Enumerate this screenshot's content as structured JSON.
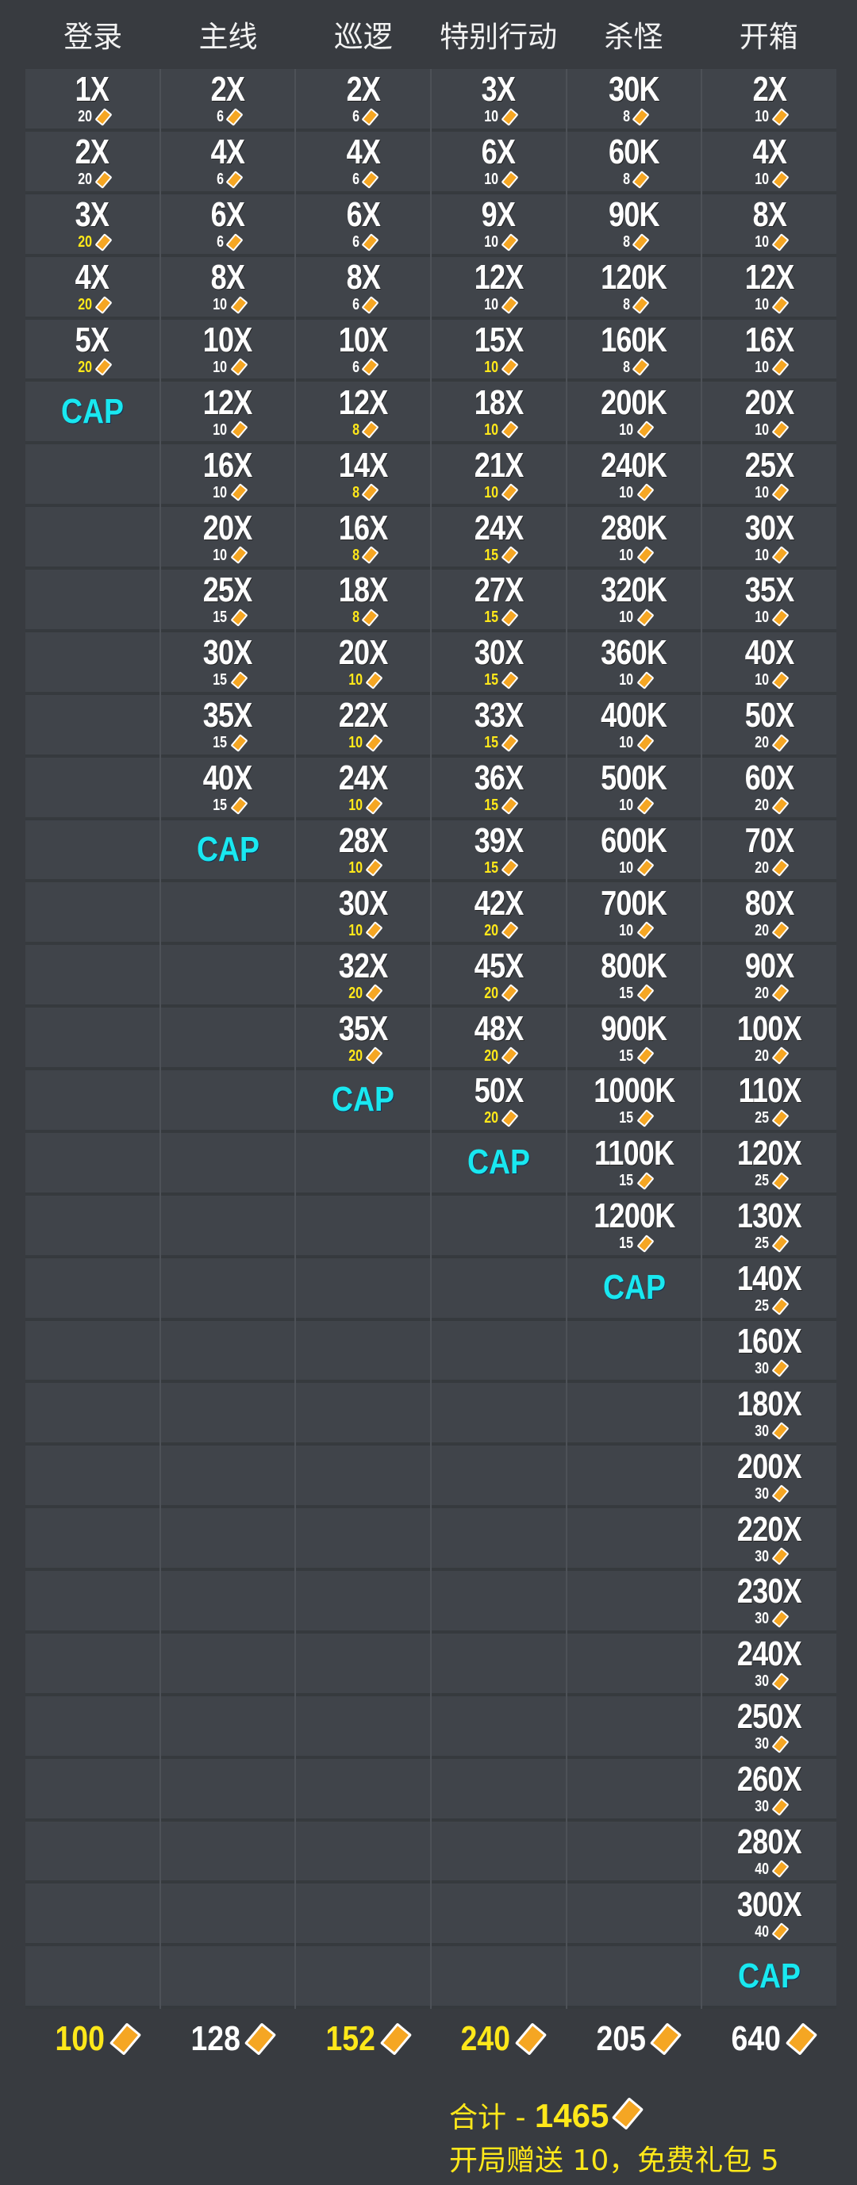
{
  "colors": {
    "yellow": "#ffe81a",
    "cyan": "#19e8f0",
    "ticket": "#f5a623",
    "background": "#383b40"
  },
  "cap_label": "CAP",
  "columns": [
    {
      "header": "登录",
      "total": "100",
      "total_yellow": true,
      "entries": [
        {
          "v": "1X",
          "n": "20",
          "y": false
        },
        {
          "v": "2X",
          "n": "20",
          "y": false
        },
        {
          "v": "3X",
          "n": "20",
          "y": true
        },
        {
          "v": "4X",
          "n": "20",
          "y": true
        },
        {
          "v": "5X",
          "n": "20",
          "y": true
        }
      ]
    },
    {
      "header": "主线",
      "total": "128",
      "total_yellow": false,
      "entries": [
        {
          "v": "2X",
          "n": "6",
          "y": false
        },
        {
          "v": "4X",
          "n": "6",
          "y": false
        },
        {
          "v": "6X",
          "n": "6",
          "y": false
        },
        {
          "v": "8X",
          "n": "10",
          "y": false
        },
        {
          "v": "10X",
          "n": "10",
          "y": false
        },
        {
          "v": "12X",
          "n": "10",
          "y": false
        },
        {
          "v": "16X",
          "n": "10",
          "y": false
        },
        {
          "v": "20X",
          "n": "10",
          "y": false
        },
        {
          "v": "25X",
          "n": "15",
          "y": false
        },
        {
          "v": "30X",
          "n": "15",
          "y": false
        },
        {
          "v": "35X",
          "n": "15",
          "y": false
        },
        {
          "v": "40X",
          "n": "15",
          "y": false
        }
      ]
    },
    {
      "header": "巡逻",
      "total": "152",
      "total_yellow": true,
      "entries": [
        {
          "v": "2X",
          "n": "6",
          "y": false
        },
        {
          "v": "4X",
          "n": "6",
          "y": false
        },
        {
          "v": "6X",
          "n": "6",
          "y": false
        },
        {
          "v": "8X",
          "n": "6",
          "y": false
        },
        {
          "v": "10X",
          "n": "6",
          "y": false
        },
        {
          "v": "12X",
          "n": "8",
          "y": true
        },
        {
          "v": "14X",
          "n": "8",
          "y": true
        },
        {
          "v": "16X",
          "n": "8",
          "y": true
        },
        {
          "v": "18X",
          "n": "8",
          "y": true
        },
        {
          "v": "20X",
          "n": "10",
          "y": true
        },
        {
          "v": "22X",
          "n": "10",
          "y": true
        },
        {
          "v": "24X",
          "n": "10",
          "y": true
        },
        {
          "v": "28X",
          "n": "10",
          "y": true
        },
        {
          "v": "30X",
          "n": "10",
          "y": true
        },
        {
          "v": "32X",
          "n": "20",
          "y": true
        },
        {
          "v": "35X",
          "n": "20",
          "y": true
        }
      ]
    },
    {
      "header": "特别行动",
      "total": "240",
      "total_yellow": true,
      "entries": [
        {
          "v": "3X",
          "n": "10",
          "y": false
        },
        {
          "v": "6X",
          "n": "10",
          "y": false
        },
        {
          "v": "9X",
          "n": "10",
          "y": false
        },
        {
          "v": "12X",
          "n": "10",
          "y": false
        },
        {
          "v": "15X",
          "n": "10",
          "y": true
        },
        {
          "v": "18X",
          "n": "10",
          "y": true
        },
        {
          "v": "21X",
          "n": "10",
          "y": true
        },
        {
          "v": "24X",
          "n": "15",
          "y": true
        },
        {
          "v": "27X",
          "n": "15",
          "y": true
        },
        {
          "v": "30X",
          "n": "15",
          "y": true
        },
        {
          "v": "33X",
          "n": "15",
          "y": true
        },
        {
          "v": "36X",
          "n": "15",
          "y": true
        },
        {
          "v": "39X",
          "n": "15",
          "y": true
        },
        {
          "v": "42X",
          "n": "20",
          "y": true
        },
        {
          "v": "45X",
          "n": "20",
          "y": true
        },
        {
          "v": "48X",
          "n": "20",
          "y": true
        },
        {
          "v": "50X",
          "n": "20",
          "y": true
        }
      ]
    },
    {
      "header": "杀怪",
      "total": "205",
      "total_yellow": false,
      "entries": [
        {
          "v": "30K",
          "n": "8",
          "y": false
        },
        {
          "v": "60K",
          "n": "8",
          "y": false
        },
        {
          "v": "90K",
          "n": "8",
          "y": false
        },
        {
          "v": "120K",
          "n": "8",
          "y": false
        },
        {
          "v": "160K",
          "n": "8",
          "y": false
        },
        {
          "v": "200K",
          "n": "10",
          "y": false
        },
        {
          "v": "240K",
          "n": "10",
          "y": false
        },
        {
          "v": "280K",
          "n": "10",
          "y": false
        },
        {
          "v": "320K",
          "n": "10",
          "y": false
        },
        {
          "v": "360K",
          "n": "10",
          "y": false
        },
        {
          "v": "400K",
          "n": "10",
          "y": false
        },
        {
          "v": "500K",
          "n": "10",
          "y": false
        },
        {
          "v": "600K",
          "n": "10",
          "y": false
        },
        {
          "v": "700K",
          "n": "10",
          "y": false
        },
        {
          "v": "800K",
          "n": "15",
          "y": false
        },
        {
          "v": "900K",
          "n": "15",
          "y": false
        },
        {
          "v": "1000K",
          "n": "15",
          "y": false
        },
        {
          "v": "1100K",
          "n": "15",
          "y": false
        },
        {
          "v": "1200K",
          "n": "15",
          "y": false
        }
      ]
    },
    {
      "header": "开箱",
      "total": "640",
      "total_yellow": false,
      "entries": [
        {
          "v": "2X",
          "n": "10",
          "y": false
        },
        {
          "v": "4X",
          "n": "10",
          "y": false
        },
        {
          "v": "8X",
          "n": "10",
          "y": false
        },
        {
          "v": "12X",
          "n": "10",
          "y": false
        },
        {
          "v": "16X",
          "n": "10",
          "y": false
        },
        {
          "v": "20X",
          "n": "10",
          "y": false
        },
        {
          "v": "25X",
          "n": "10",
          "y": false
        },
        {
          "v": "30X",
          "n": "10",
          "y": false
        },
        {
          "v": "35X",
          "n": "10",
          "y": false
        },
        {
          "v": "40X",
          "n": "10",
          "y": false
        },
        {
          "v": "50X",
          "n": "20",
          "y": false
        },
        {
          "v": "60X",
          "n": "20",
          "y": false
        },
        {
          "v": "70X",
          "n": "20",
          "y": false
        },
        {
          "v": "80X",
          "n": "20",
          "y": false
        },
        {
          "v": "90X",
          "n": "20",
          "y": false
        },
        {
          "v": "100X",
          "n": "20",
          "y": false
        },
        {
          "v": "110X",
          "n": "25",
          "y": false
        },
        {
          "v": "120X",
          "n": "25",
          "y": false
        },
        {
          "v": "130X",
          "n": "25",
          "y": false
        },
        {
          "v": "140X",
          "n": "25",
          "y": false
        },
        {
          "v": "160X",
          "n": "30",
          "y": false
        },
        {
          "v": "180X",
          "n": "30",
          "y": false
        },
        {
          "v": "200X",
          "n": "30",
          "y": false
        },
        {
          "v": "220X",
          "n": "30",
          "y": false
        },
        {
          "v": "230X",
          "n": "30",
          "y": false
        },
        {
          "v": "240X",
          "n": "30",
          "y": false
        },
        {
          "v": "250X",
          "n": "30",
          "y": false
        },
        {
          "v": "260X",
          "n": "30",
          "y": false
        },
        {
          "v": "280X",
          "n": "40",
          "y": false
        },
        {
          "v": "300X",
          "n": "40",
          "y": false
        }
      ]
    }
  ],
  "summary": {
    "total_label": "合计 - ",
    "total_value": "1465",
    "note": "开局赠送 10，免费礼包 5"
  }
}
